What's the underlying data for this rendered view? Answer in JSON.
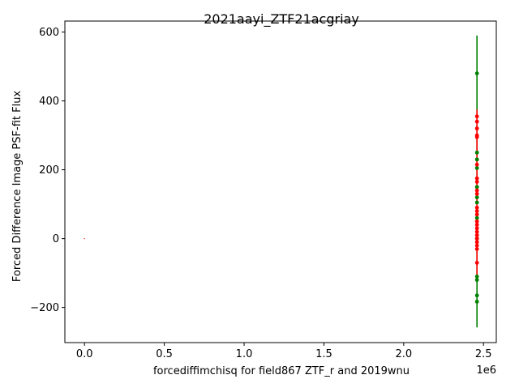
{
  "chart_data": {
    "type": "scatter",
    "title": "2021aayi_ZTF21acgriay",
    "xlabel": "forcediffimchisq for field867 ZTF_r and 2019wnu",
    "ylabel": "Forced Difference Image PSF-fit Flux",
    "x_offset_label": "1e6",
    "xlim": [
      -0.123,
      2.58
    ],
    "ylim": [
      -302,
      632
    ],
    "x_ticks": [
      0.0,
      0.5,
      1.0,
      1.5,
      2.0,
      2.5
    ],
    "x_tick_labels": [
      "0.0",
      "0.5",
      "1.0",
      "1.5",
      "2.0",
      "2.5"
    ],
    "y_ticks": [
      -200,
      0,
      200,
      400,
      600
    ],
    "y_tick_labels": [
      "−200",
      "0",
      "200",
      "400",
      "600"
    ],
    "grid": false,
    "colors": {
      "g": "#008000",
      "r": "#ff0000",
      "axes": "#000000"
    },
    "series": [
      {
        "color": "#008000",
        "error_range": [
          -258,
          590
        ],
        "points": [
          {
            "x": 2.459,
            "y": 480
          },
          {
            "x": 2.459,
            "y": 250
          },
          {
            "x": 2.459,
            "y": 230
          },
          {
            "x": 2.459,
            "y": 205
          },
          {
            "x": 2.459,
            "y": 150
          },
          {
            "x": 2.459,
            "y": 120
          },
          {
            "x": 2.459,
            "y": 105
          },
          {
            "x": 2.459,
            "y": 60
          },
          {
            "x": 2.459,
            "y": 0
          },
          {
            "x": 2.459,
            "y": -110
          },
          {
            "x": 2.459,
            "y": -120
          },
          {
            "x": 2.459,
            "y": -165
          },
          {
            "x": 2.459,
            "y": -183
          }
        ]
      },
      {
        "color": "#ff0000",
        "error_range": [
          -120,
          375
        ],
        "points": [
          {
            "x": 2.459,
            "y": 355
          },
          {
            "x": 2.459,
            "y": 340
          },
          {
            "x": 2.459,
            "y": 320
          },
          {
            "x": 2.459,
            "y": 300
          },
          {
            "x": 2.459,
            "y": 295
          },
          {
            "x": 2.459,
            "y": 215
          },
          {
            "x": 2.459,
            "y": 175
          },
          {
            "x": 2.459,
            "y": 165
          },
          {
            "x": 2.459,
            "y": 140
          },
          {
            "x": 2.459,
            "y": 130
          },
          {
            "x": 2.459,
            "y": 90
          },
          {
            "x": 2.459,
            "y": 80
          },
          {
            "x": 2.459,
            "y": 70
          },
          {
            "x": 2.459,
            "y": 50
          },
          {
            "x": 2.459,
            "y": 40
          },
          {
            "x": 2.459,
            "y": 30
          },
          {
            "x": 2.459,
            "y": 20
          },
          {
            "x": 2.459,
            "y": 10
          },
          {
            "x": 2.459,
            "y": 0
          },
          {
            "x": 2.459,
            "y": -10
          },
          {
            "x": 2.459,
            "y": -20
          },
          {
            "x": 2.459,
            "y": -30
          },
          {
            "x": 2.459,
            "y": -70
          }
        ]
      },
      {
        "color": "#ff0000",
        "error_range": [
          0,
          0
        ],
        "points": [
          {
            "x": 0.0,
            "y": 0
          }
        ]
      }
    ]
  }
}
